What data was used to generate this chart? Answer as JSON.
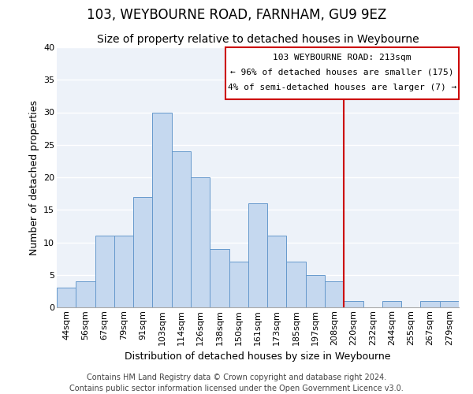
{
  "title": "103, WEYBOURNE ROAD, FARNHAM, GU9 9EZ",
  "subtitle": "Size of property relative to detached houses in Weybourne",
  "xlabel": "Distribution of detached houses by size in Weybourne",
  "ylabel": "Number of detached properties",
  "bar_color": "#c5d8ef",
  "bar_edge_color": "#6699cc",
  "background_color": "#edf2f9",
  "grid_color": "#ffffff",
  "bin_labels": [
    "44sqm",
    "56sqm",
    "67sqm",
    "79sqm",
    "91sqm",
    "103sqm",
    "114sqm",
    "126sqm",
    "138sqm",
    "150sqm",
    "161sqm",
    "173sqm",
    "185sqm",
    "197sqm",
    "208sqm",
    "220sqm",
    "232sqm",
    "244sqm",
    "255sqm",
    "267sqm",
    "279sqm"
  ],
  "bar_heights": [
    3,
    4,
    11,
    11,
    17,
    30,
    24,
    20,
    9,
    7,
    16,
    11,
    7,
    5,
    4,
    1,
    0,
    1,
    0,
    1,
    1
  ],
  "ylim": [
    0,
    40
  ],
  "yticks": [
    0,
    5,
    10,
    15,
    20,
    25,
    30,
    35,
    40
  ],
  "ref_line_color": "#cc0000",
  "annotation_title": "103 WEYBOURNE ROAD: 213sqm",
  "annotation_line1": "← 96% of detached houses are smaller (175)",
  "annotation_line2": "4% of semi-detached houses are larger (7) →",
  "footer_line1": "Contains HM Land Registry data © Crown copyright and database right 2024.",
  "footer_line2": "Contains public sector information licensed under the Open Government Licence v3.0.",
  "title_fontsize": 12,
  "subtitle_fontsize": 10,
  "annotation_fontsize": 8,
  "axis_label_fontsize": 9,
  "tick_fontsize": 8,
  "footer_fontsize": 7
}
